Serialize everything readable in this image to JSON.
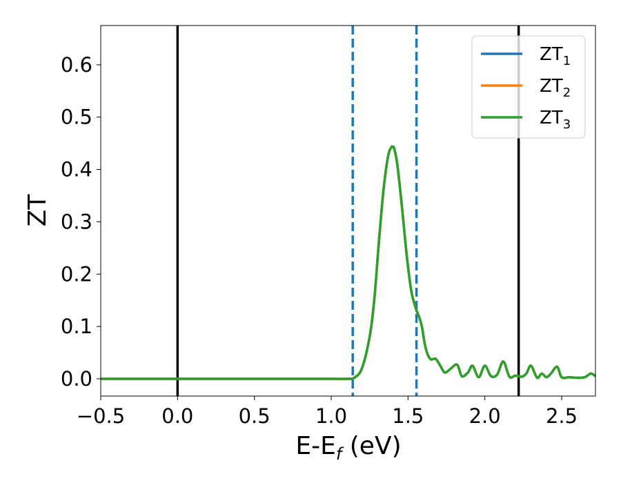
{
  "chart_data": {
    "type": "line",
    "title": "",
    "xlabel": "E-E",
    "xlabel_sub": "f",
    "xlabel_unit": " (eV)",
    "ylabel": "ZT",
    "xlim": [
      -0.5,
      2.72
    ],
    "ylim": [
      -0.033,
      0.675
    ],
    "xticks": [
      -0.5,
      0.0,
      0.5,
      1.0,
      1.5,
      2.0,
      2.5
    ],
    "xtick_labels": [
      "−0.5",
      "0.0",
      "0.5",
      "1.0",
      "1.5",
      "2.0",
      "2.5"
    ],
    "yticks": [
      0.0,
      0.1,
      0.2,
      0.3,
      0.4,
      0.5,
      0.6
    ],
    "ytick_labels": [
      "0.0",
      "0.1",
      "0.2",
      "0.3",
      "0.4",
      "0.5",
      "0.6"
    ],
    "grid": false,
    "legend_position": "top-right",
    "vlines_solid": [
      0.0,
      2.22
    ],
    "vlines_dashed": [
      1.14,
      1.555
    ],
    "vline_solid_color": "#000000",
    "vline_dashed_color": "#1f77b4",
    "series": [
      {
        "name": "ZT",
        "name_sub": "1",
        "color": "#1f77b4",
        "x": [
          -0.5,
          0.0,
          0.5,
          1.0,
          1.1,
          1.15,
          1.2,
          1.25,
          1.28,
          1.31,
          1.34,
          1.37,
          1.39,
          1.4,
          1.41,
          1.43,
          1.46,
          1.49,
          1.52,
          1.55,
          1.57,
          1.59,
          1.61,
          1.63,
          1.65,
          1.68,
          1.71,
          1.74,
          1.78,
          1.82,
          1.85,
          1.89,
          1.92,
          1.96,
          2.0,
          2.04,
          2.08,
          2.12,
          2.16,
          2.2,
          2.24,
          2.27,
          2.3,
          2.34,
          2.37,
          2.4,
          2.43,
          2.47,
          2.5,
          2.55,
          2.6,
          2.65,
          2.69,
          2.72
        ],
        "y": [
          0.0,
          0.0,
          0.0,
          0.0,
          0.0,
          0.002,
          0.02,
          0.08,
          0.15,
          0.26,
          0.36,
          0.425,
          0.442,
          0.443,
          0.44,
          0.41,
          0.33,
          0.24,
          0.17,
          0.135,
          0.12,
          0.1,
          0.065,
          0.045,
          0.037,
          0.038,
          0.025,
          0.012,
          0.02,
          0.027,
          0.005,
          0.012,
          0.025,
          0.003,
          0.025,
          0.005,
          0.008,
          0.033,
          0.004,
          0.006,
          0.004,
          0.01,
          0.025,
          0.002,
          0.01,
          0.003,
          0.01,
          0.023,
          0.003,
          0.003,
          0.002,
          0.003,
          0.01,
          0.005
        ]
      },
      {
        "name": "ZT",
        "name_sub": "2",
        "color": "#ff7f0e",
        "x": [
          -0.5,
          0.0,
          0.5,
          1.0,
          1.1,
          1.15,
          1.2,
          1.25,
          1.28,
          1.31,
          1.34,
          1.37,
          1.39,
          1.4,
          1.41,
          1.43,
          1.46,
          1.49,
          1.52,
          1.55,
          1.57,
          1.59,
          1.61,
          1.63,
          1.65,
          1.68,
          1.71,
          1.74,
          1.78,
          1.82,
          1.85,
          1.89,
          1.92,
          1.96,
          2.0,
          2.04,
          2.08,
          2.12,
          2.16,
          2.2,
          2.24,
          2.27,
          2.3,
          2.34,
          2.37,
          2.4,
          2.43,
          2.47,
          2.5,
          2.55,
          2.6,
          2.65,
          2.69,
          2.72
        ],
        "y": [
          0.0,
          0.0,
          0.0,
          0.0,
          0.0,
          0.002,
          0.02,
          0.08,
          0.15,
          0.26,
          0.36,
          0.425,
          0.442,
          0.443,
          0.44,
          0.41,
          0.33,
          0.24,
          0.17,
          0.135,
          0.12,
          0.1,
          0.065,
          0.045,
          0.037,
          0.038,
          0.025,
          0.012,
          0.02,
          0.027,
          0.005,
          0.012,
          0.025,
          0.003,
          0.025,
          0.005,
          0.008,
          0.033,
          0.004,
          0.006,
          0.004,
          0.01,
          0.025,
          0.002,
          0.01,
          0.003,
          0.01,
          0.023,
          0.003,
          0.003,
          0.002,
          0.003,
          0.01,
          0.005
        ]
      },
      {
        "name": "ZT",
        "name_sub": "3",
        "color": "#2ca02c",
        "x": [
          -0.5,
          0.0,
          0.5,
          1.0,
          1.1,
          1.15,
          1.2,
          1.25,
          1.28,
          1.31,
          1.34,
          1.37,
          1.39,
          1.4,
          1.41,
          1.43,
          1.46,
          1.49,
          1.52,
          1.55,
          1.57,
          1.59,
          1.61,
          1.63,
          1.65,
          1.68,
          1.71,
          1.74,
          1.78,
          1.82,
          1.85,
          1.89,
          1.92,
          1.96,
          2.0,
          2.04,
          2.08,
          2.12,
          2.16,
          2.2,
          2.24,
          2.27,
          2.3,
          2.34,
          2.37,
          2.4,
          2.43,
          2.47,
          2.5,
          2.55,
          2.6,
          2.65,
          2.69,
          2.72
        ],
        "y": [
          0.0,
          0.0,
          0.0,
          0.0,
          0.0,
          0.002,
          0.02,
          0.08,
          0.15,
          0.26,
          0.36,
          0.425,
          0.442,
          0.443,
          0.44,
          0.41,
          0.33,
          0.24,
          0.17,
          0.135,
          0.12,
          0.1,
          0.065,
          0.045,
          0.037,
          0.038,
          0.025,
          0.012,
          0.02,
          0.027,
          0.005,
          0.012,
          0.025,
          0.003,
          0.025,
          0.005,
          0.008,
          0.033,
          0.004,
          0.006,
          0.004,
          0.01,
          0.025,
          0.002,
          0.01,
          0.003,
          0.01,
          0.023,
          0.003,
          0.003,
          0.002,
          0.003,
          0.01,
          0.005
        ]
      }
    ]
  }
}
